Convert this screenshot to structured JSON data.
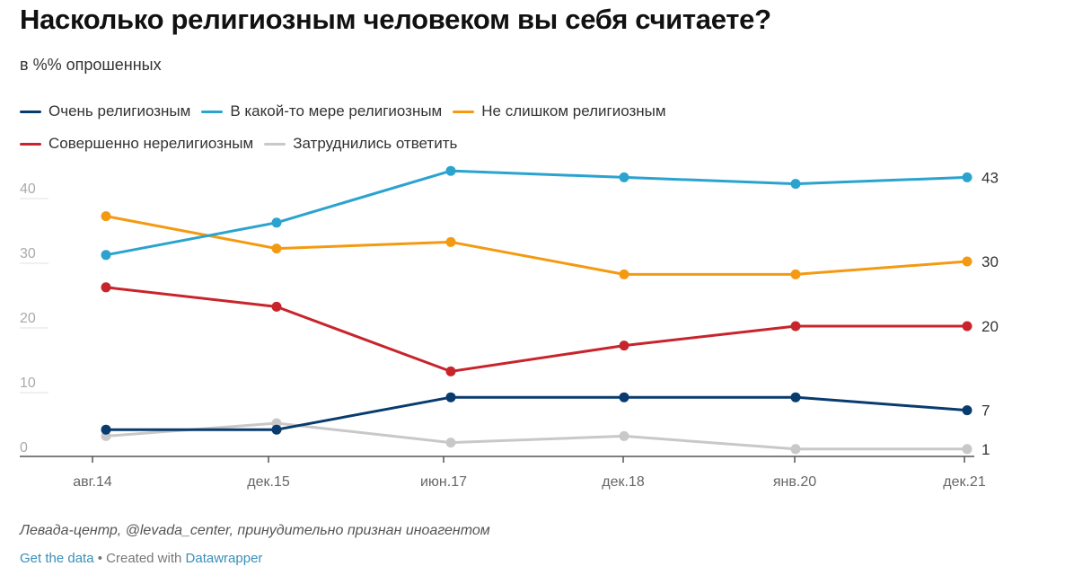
{
  "chart_data": {
    "type": "line",
    "title": "Насколько религиозным человеком вы себя считаете?",
    "subtitle": "в %% опрошенных",
    "xlabel": "",
    "ylabel": "",
    "ylim": [
      0,
      45
    ],
    "yticks": [
      0,
      10,
      20,
      30,
      40
    ],
    "grid": true,
    "legend_position": "top-left",
    "categories": [
      "авг.14",
      "дек.15",
      "июн.17",
      "дек.18",
      "янв.20",
      "дек.21"
    ],
    "series": [
      {
        "name": "Очень религиозным",
        "color": "#083b6e",
        "values": [
          4,
          4,
          9,
          9,
          9,
          7
        ],
        "end_label": "7"
      },
      {
        "name": "В какой-то мере религиозным",
        "color": "#2aa3cf",
        "values": [
          31,
          36,
          44,
          43,
          42,
          43
        ],
        "end_label": "43"
      },
      {
        "name": "Не слишком религиозным",
        "color": "#f49a12",
        "values": [
          37,
          32,
          33,
          28,
          28,
          30
        ],
        "end_label": "30"
      },
      {
        "name": "Совершенно нерелигиозным",
        "color": "#c8242b",
        "values": [
          26,
          23,
          13,
          17,
          20,
          20
        ],
        "end_label": "20"
      },
      {
        "name": "Затруднились ответить",
        "color": "#c8c8c8",
        "values": [
          3,
          5,
          2,
          3,
          1,
          1
        ],
        "end_label": "1"
      }
    ]
  },
  "source": "Левада-центр, @levada_center, принудительно признан иноагентом",
  "footer": {
    "get_data": "Get the data",
    "separator": " • Created with ",
    "datawrapper": "Datawrapper"
  }
}
